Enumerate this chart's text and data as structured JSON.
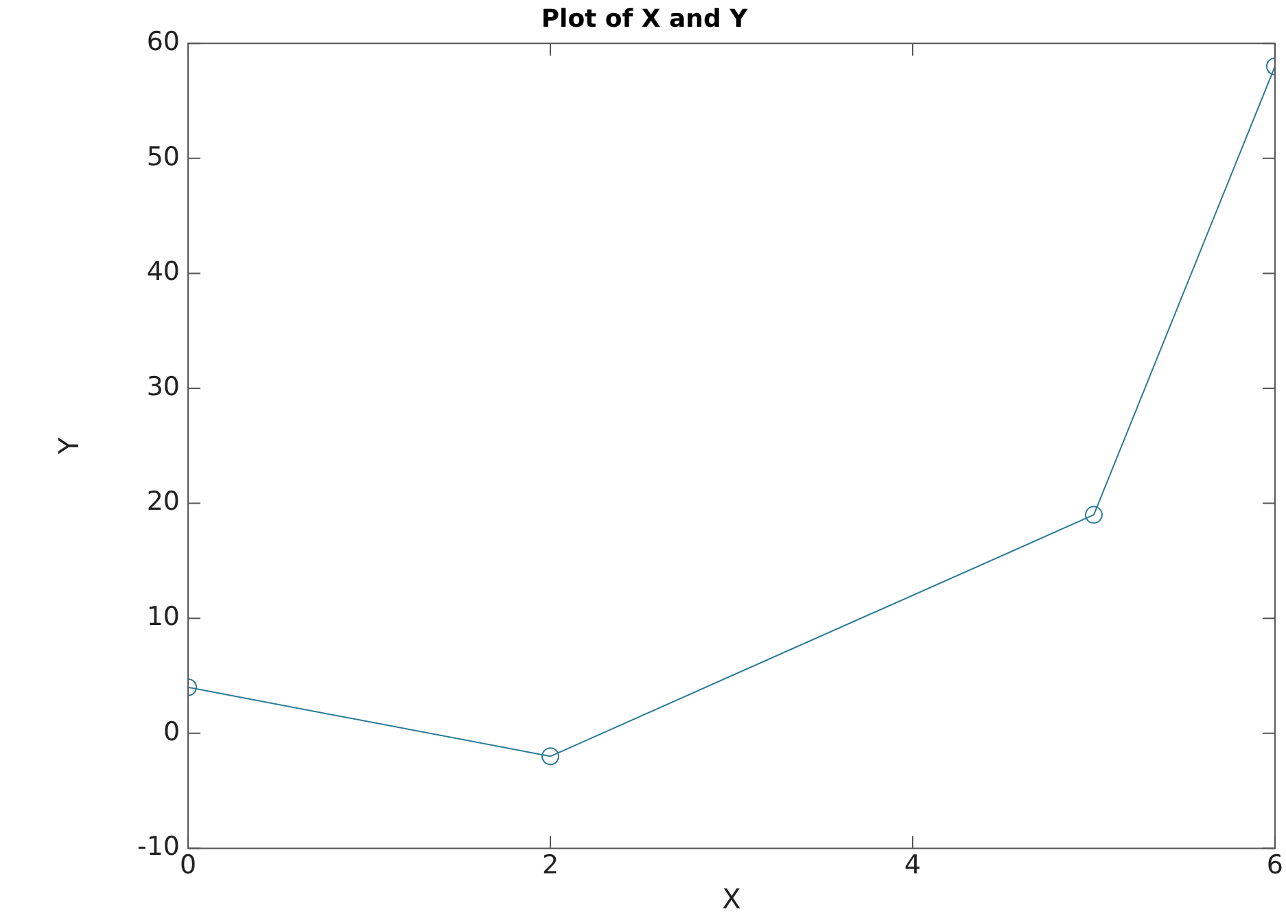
{
  "chart_data": {
    "type": "line",
    "title": "Plot of X and Y",
    "xlabel": "X",
    "ylabel": "Y",
    "x": [
      0,
      2,
      5,
      6
    ],
    "series": [
      {
        "color": "#2b7a96",
        "values": [
          4,
          -2,
          19,
          58
        ]
      }
    ],
    "xlim": [
      0,
      6
    ],
    "xticks": [
      0,
      2,
      4,
      6
    ],
    "ylim": [
      -10,
      60
    ],
    "yticks": [
      -10,
      0,
      10,
      20,
      30,
      40,
      50,
      60
    ],
    "marker": "circle",
    "line_style": "solid"
  }
}
